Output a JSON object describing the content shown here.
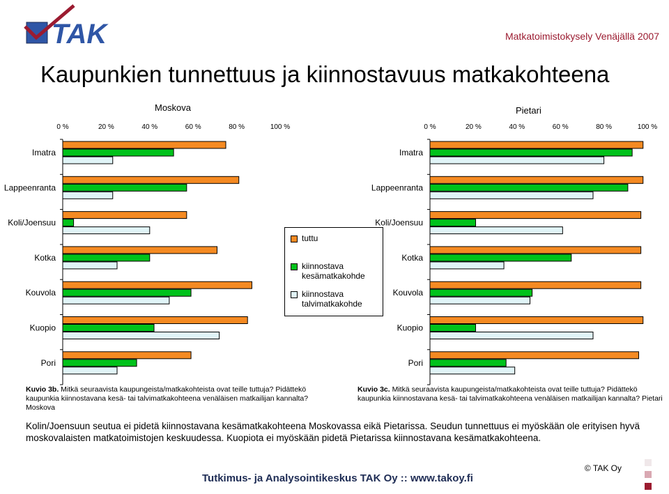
{
  "header": {
    "logo_text": "TAK",
    "right_text": "Matkatoimistokysely Venäjällä 2007"
  },
  "main_title": "Kaupunkien tunnettuus ja kiinnostavuus matkakohteena",
  "colors": {
    "tuttu": "#f58a22",
    "kesa": "#00c21b",
    "talvi": "#e0f4f7",
    "brand": "#9b1b30",
    "footer": "#1f2d55"
  },
  "legend": {
    "tuttu": "tuttu",
    "kesa": "kiinnostava kesämatkakohde",
    "talvi": "kiinnostava talvimatkakohde"
  },
  "chart_data": [
    {
      "type": "bar",
      "orientation": "horizontal",
      "title": "Moskova",
      "categories": [
        "Imatra",
        "Lappeenranta",
        "Koli/Joensuu",
        "Kotka",
        "Kouvola",
        "Kuopio",
        "Pori"
      ],
      "xlim": [
        0,
        100
      ],
      "ticks": [
        "0 %",
        "20 %",
        "40 %",
        "60 %",
        "80 %",
        "100 %"
      ],
      "tick_values": [
        0,
        20,
        40,
        60,
        80,
        100
      ],
      "series": [
        {
          "name": "tuttu",
          "values": [
            75,
            81,
            57,
            71,
            87,
            85,
            59
          ]
        },
        {
          "name": "kiinnostava kesämatkakohde",
          "values": [
            51,
            57,
            5,
            40,
            59,
            42,
            34
          ]
        },
        {
          "name": "kiinnostava talvimatkakohde",
          "values": [
            23,
            23,
            40,
            25,
            49,
            72,
            25
          ]
        }
      ]
    },
    {
      "type": "bar",
      "orientation": "horizontal",
      "title": "Pietari",
      "categories": [
        "Imatra",
        "Lappeenranta",
        "Koli/Joensuu",
        "Kotka",
        "Kouvola",
        "Kuopio",
        "Pori"
      ],
      "xlim": [
        0,
        100
      ],
      "ticks": [
        "0 %",
        "20 %",
        "40 %",
        "60 %",
        "80 %",
        "100 %"
      ],
      "tick_values": [
        0,
        20,
        40,
        60,
        80,
        100
      ],
      "series": [
        {
          "name": "tuttu",
          "values": [
            98,
            98,
            97,
            97,
            97,
            98,
            96
          ]
        },
        {
          "name": "kiinnostava kesämatkakohde",
          "values": [
            93,
            91,
            21,
            65,
            47,
            21,
            35
          ]
        },
        {
          "name": "kiinnostava talvimatkakohde",
          "values": [
            80,
            75,
            61,
            34,
            46,
            75,
            39
          ]
        }
      ]
    }
  ],
  "captions": {
    "left_bold": "Kuvio 3b.",
    "left_text": " Mitkä seuraavista kaupungeista/matkakohteista ovat teille tuttuja? Pidättekö kaupunkia kiinnostavana kesä- tai talvimatkakohteena venäläisen matkailijan kannalta? Moskova",
    "right_bold": "Kuvio 3c.",
    "right_text": " Mitkä seuraavista kaupungeista/matkakohteista ovat teille tuttuja? Pidättekö kaupunkia kiinnostavana kesä- tai talvimatkakohteena venäläisen matkailijan kannalta? Pietari"
  },
  "summary": "Kolin/Joensuun seutua ei pidetä kiinnostavana kesämatkakohteena Moskovassa eikä Pietarissa. Seudun tunnettuus ei myöskään ole erityisen hyvä moskovalaisten matkatoimistojen keskuudessa. Kuopiota ei myöskään pidetä Pietarissa kiinnostavana kesämatkakohteena.",
  "footer": "Tutkimus- ja Analysointikeskus TAK Oy  ::  www.takoy.fi",
  "copyright": "© TAK Oy"
}
